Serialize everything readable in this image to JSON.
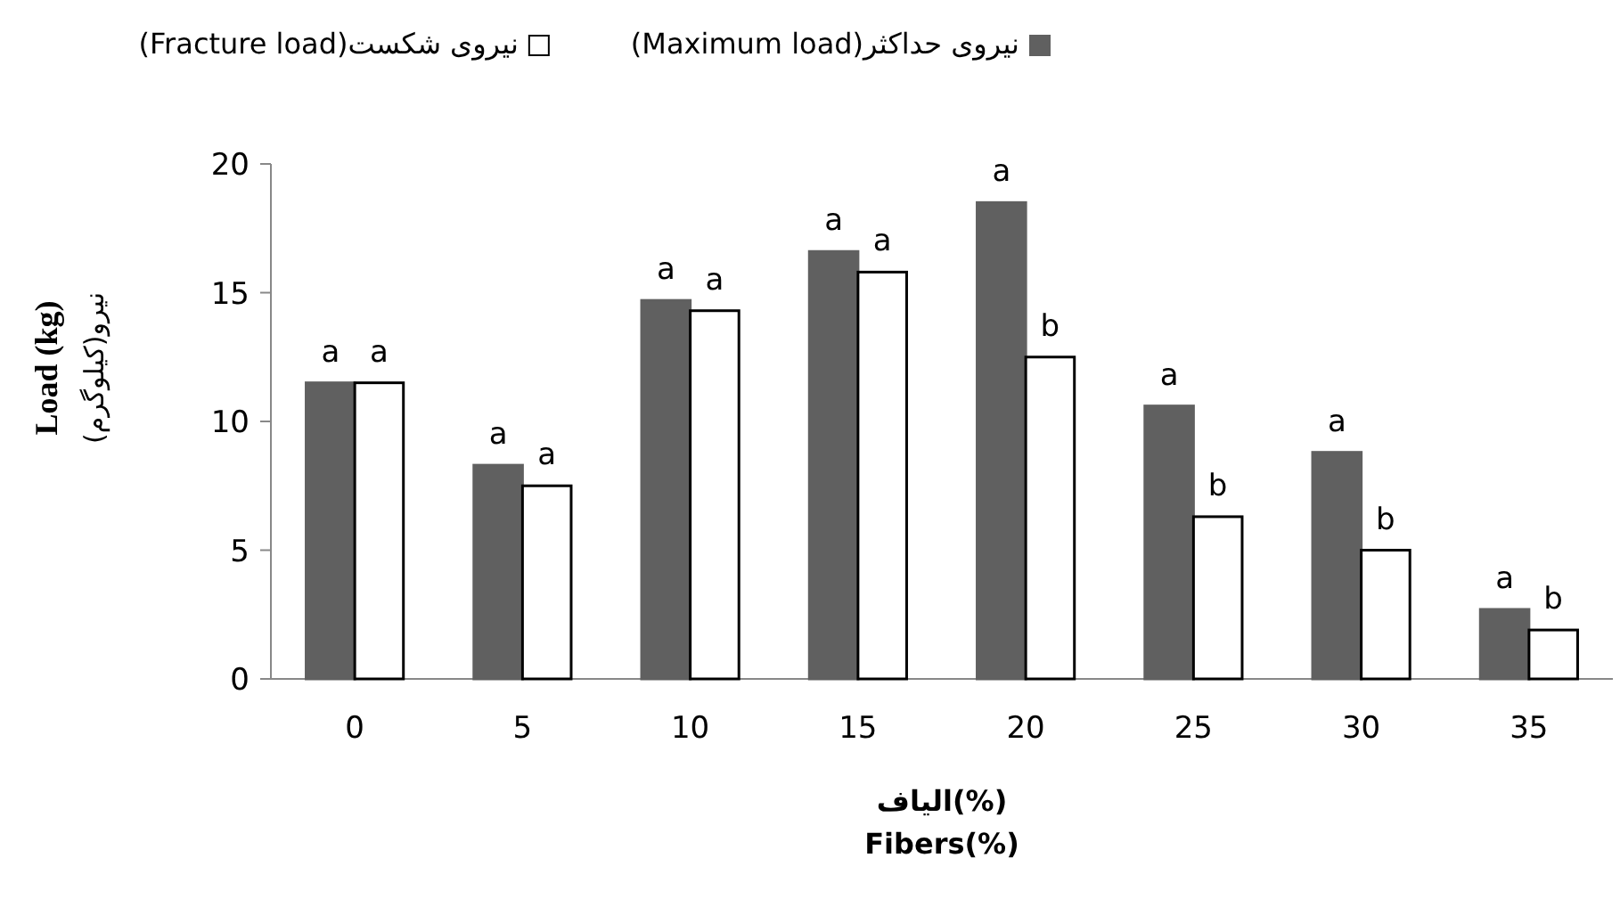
{
  "chart_data": {
    "type": "bar",
    "xlabel": "**الیاف(%)**\n**Fibers(%)**",
    "ylabel": "**Load (kg)**\nنیرو(کیلوگرم)",
    "categories": [
      "0",
      "5",
      "10",
      "15",
      "20",
      "25",
      "30",
      "35"
    ],
    "series": [
      {
        "name": "نیروی حداکثر(Maximum load)",
        "color": "#606060",
        "values": [
          11.5,
          8.3,
          14.7,
          16.6,
          18.5,
          10.6,
          8.8,
          2.7
        ],
        "value_labels": [
          "a",
          "a",
          "a",
          "a",
          "a",
          "a",
          "a",
          "a"
        ]
      },
      {
        "name": "نیروی شکست(Fracture load)",
        "color": "#ffffff",
        "values": [
          11.5,
          7.5,
          14.3,
          15.8,
          12.5,
          6.3,
          5.0,
          1.9
        ],
        "value_labels": [
          "a",
          "a",
          "a",
          "a",
          "b",
          "b",
          "b",
          "b"
        ]
      }
    ],
    "ylim": [
      0,
      20
    ],
    "yticks": [
      0,
      5,
      10,
      15,
      20
    ],
    "grid": false,
    "legend": "top"
  }
}
